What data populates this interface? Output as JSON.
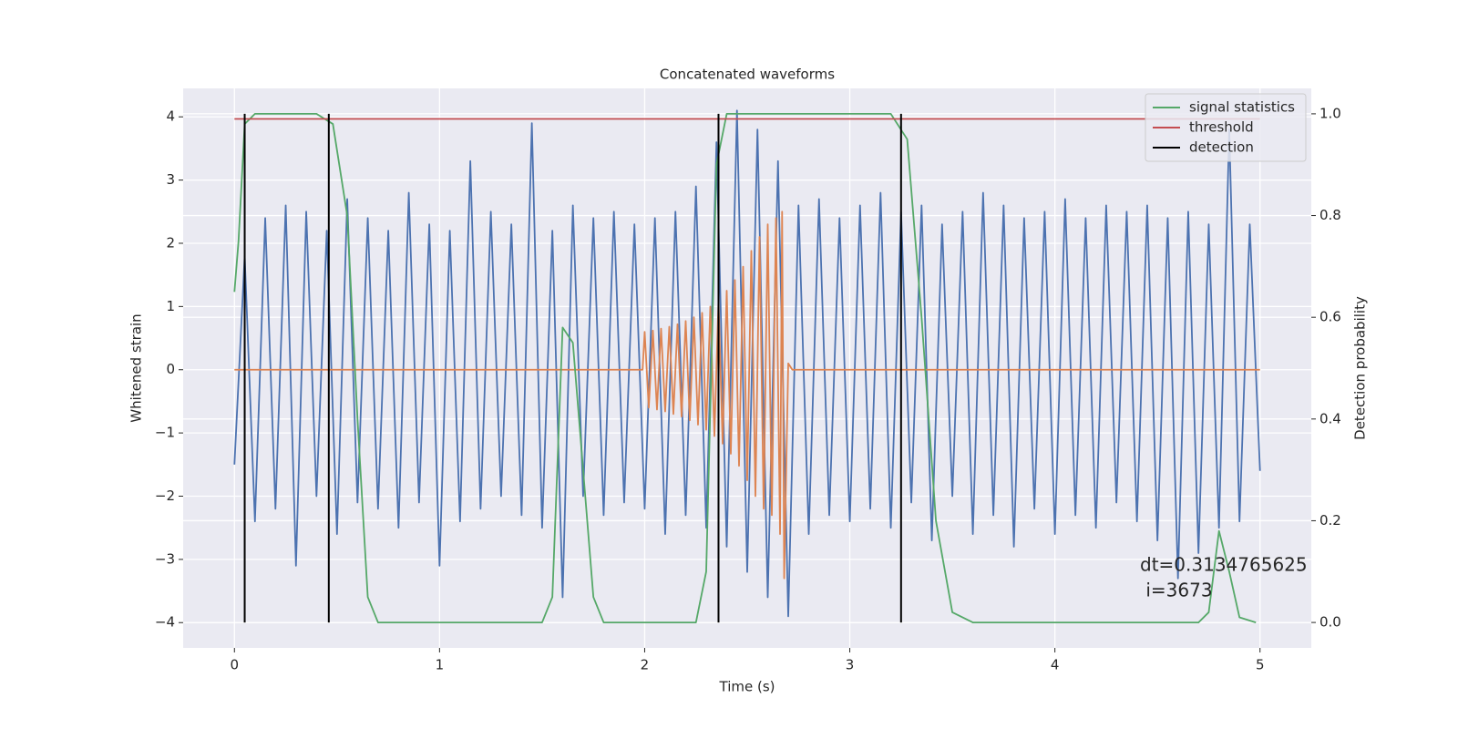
{
  "chart_data": {
    "type": "line",
    "title": "Concatenated waveforms",
    "xlabel": "Time (s)",
    "ylabel": "Whitened strain",
    "y2label": "Detection probability",
    "xlim": [
      -0.25,
      5.25
    ],
    "ylim": [
      -4.4,
      4.45
    ],
    "y2lim": [
      -0.05,
      1.05
    ],
    "xticks": [
      0,
      1,
      2,
      3,
      4,
      5
    ],
    "yticks": [
      {
        "value": -4,
        "label": "−4"
      },
      {
        "value": -3,
        "label": "−3"
      },
      {
        "value": -2,
        "label": "−2"
      },
      {
        "value": -1,
        "label": "−1"
      },
      0,
      1,
      2,
      3,
      4
    ],
    "y2ticks": [
      {
        "value": 0,
        "label": "0.0"
      },
      0.2,
      0.4,
      0.6,
      0.8,
      {
        "value": 1,
        "label": "1.0"
      }
    ],
    "grid": true,
    "background": "#eaeaf2",
    "legend": "upper right",
    "annotation": [
      "dt=0.3134765625",
      " i=3673"
    ],
    "series": [
      {
        "color": "#4c72b0",
        "x": [
          0,
          0.05,
          0.1,
          0.15,
          0.2,
          0.25,
          0.3,
          0.35,
          0.4,
          0.45,
          0.5,
          0.55,
          0.6,
          0.65,
          0.7,
          0.75,
          0.8,
          0.85,
          0.9,
          0.95,
          1.0,
          1.05,
          1.1,
          1.15,
          1.2,
          1.25,
          1.3,
          1.35,
          1.4,
          1.45,
          1.5,
          1.55,
          1.6,
          1.65,
          1.7,
          1.75,
          1.8,
          1.85,
          1.9,
          1.95,
          2.0,
          2.05,
          2.1,
          2.15,
          2.2,
          2.25,
          2.3,
          2.35,
          2.4,
          2.45,
          2.5,
          2.55,
          2.6,
          2.65,
          2.7,
          2.75,
          2.8,
          2.85,
          2.9,
          2.95,
          3.0,
          3.05,
          3.1,
          3.15,
          3.2,
          3.25,
          3.3,
          3.35,
          3.4,
          3.45,
          3.5,
          3.55,
          3.6,
          3.65,
          3.7,
          3.75,
          3.8,
          3.85,
          3.9,
          3.95,
          4.0,
          4.05,
          4.1,
          4.15,
          4.2,
          4.25,
          4.3,
          4.35,
          4.4,
          4.45,
          4.5,
          4.55,
          4.6,
          4.65,
          4.7,
          4.75,
          4.8,
          4.85,
          4.9,
          4.95,
          5.0
        ],
        "values": [
          -1.5,
          1.8,
          -2.4,
          2.4,
          -2.2,
          2.6,
          -3.1,
          2.5,
          -2.0,
          2.2,
          -2.6,
          2.7,
          -2.1,
          2.4,
          -2.2,
          2.2,
          -2.5,
          2.8,
          -2.1,
          2.3,
          -3.1,
          2.2,
          -2.4,
          3.3,
          -2.2,
          2.5,
          -2.0,
          2.3,
          -2.3,
          3.9,
          -2.5,
          2.2,
          -3.6,
          2.6,
          -2.0,
          2.4,
          -2.3,
          2.5,
          -2.1,
          2.3,
          -2.2,
          2.4,
          -2.6,
          2.5,
          -2.3,
          2.9,
          -2.5,
          3.6,
          -2.8,
          4.1,
          -3.2,
          3.8,
          -3.6,
          3.3,
          -3.9,
          2.6,
          -2.6,
          2.7,
          -2.3,
          2.4,
          -2.4,
          2.6,
          -2.2,
          2.8,
          -2.5,
          2.5,
          -2.1,
          2.6,
          -2.7,
          2.3,
          -2.0,
          2.5,
          -2.6,
          2.8,
          -2.3,
          2.6,
          -2.8,
          2.4,
          -2.2,
          2.5,
          -2.6,
          2.7,
          -2.3,
          2.4,
          -2.5,
          2.6,
          -2.1,
          2.5,
          -2.4,
          2.6,
          -2.7,
          2.4,
          -3.3,
          2.5,
          -2.9,
          2.3,
          -2.5,
          3.8,
          -2.4,
          2.3,
          -1.6
        ]
      },
      {
        "color": "#dd8452",
        "x": [
          0,
          1.99,
          2.0,
          2.02,
          2.04,
          2.06,
          2.08,
          2.1,
          2.12,
          2.14,
          2.16,
          2.18,
          2.2,
          2.22,
          2.24,
          2.26,
          2.28,
          2.3,
          2.32,
          2.34,
          2.36,
          2.38,
          2.4,
          2.42,
          2.44,
          2.46,
          2.48,
          2.5,
          2.52,
          2.54,
          2.56,
          2.58,
          2.6,
          2.62,
          2.64,
          2.66,
          2.67,
          2.68,
          2.7,
          2.72,
          5.0
        ],
        "values": [
          0,
          0,
          0.6,
          -0.6,
          0.62,
          -0.63,
          0.65,
          -0.66,
          0.68,
          -0.7,
          0.72,
          -0.74,
          0.77,
          -0.8,
          0.83,
          -0.87,
          0.9,
          -0.95,
          1.0,
          -1.05,
          1.1,
          -1.17,
          1.25,
          -1.33,
          1.42,
          -1.52,
          1.63,
          -1.75,
          1.88,
          -2.0,
          2.1,
          -2.2,
          2.3,
          -2.3,
          2.4,
          -2.6,
          2.5,
          -3.3,
          0.1,
          0,
          0
        ]
      },
      {
        "name": "signal statistics",
        "color": "#55a868",
        "axis": "y2",
        "x": [
          0,
          0.02,
          0.05,
          0.1,
          0.4,
          0.48,
          0.55,
          0.6,
          0.65,
          0.7,
          1.5,
          1.55,
          1.6,
          1.65,
          1.7,
          1.75,
          1.8,
          2.25,
          2.3,
          2.35,
          2.4,
          3.2,
          3.28,
          3.35,
          3.42,
          3.5,
          3.6,
          4.7,
          4.75,
          4.8,
          4.85,
          4.9,
          4.98
        ],
        "values": [
          0.65,
          0.75,
          0.98,
          1.0,
          1.0,
          0.98,
          0.8,
          0.4,
          0.05,
          0.0,
          0.0,
          0.05,
          0.58,
          0.55,
          0.3,
          0.05,
          0.0,
          0.0,
          0.1,
          0.9,
          1.0,
          1.0,
          0.95,
          0.6,
          0.2,
          0.02,
          0.0,
          0.0,
          0.02,
          0.18,
          0.1,
          0.01,
          0.0
        ]
      },
      {
        "name": "threshold",
        "color": "#c44e52",
        "axis": "y2",
        "x": [
          0,
          5
        ],
        "values": [
          0.99,
          0.99
        ]
      },
      {
        "name": "detection",
        "color": "#000000",
        "axis": "y2",
        "kind": "vlines",
        "x": [
          0.05,
          0.46,
          2.36,
          3.25
        ],
        "ymin": 0,
        "ymax": 1
      }
    ]
  }
}
